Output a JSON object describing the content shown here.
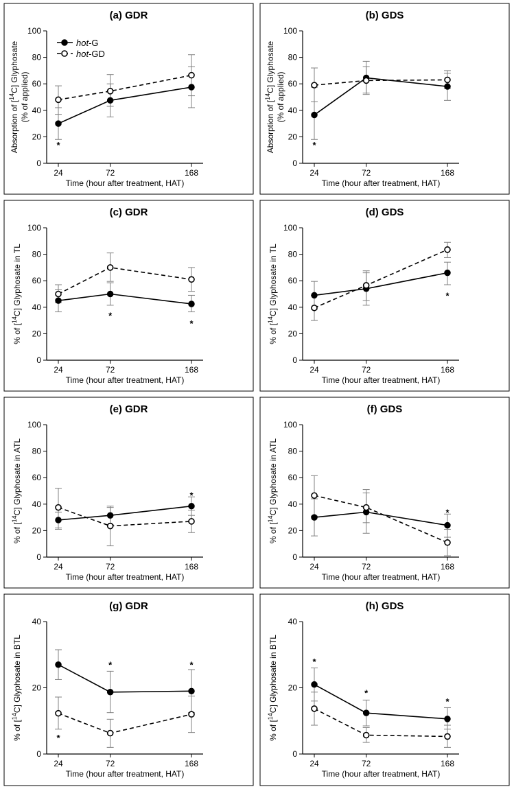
{
  "figure": {
    "xlabel": "Time (hour after treatment, HAT)",
    "legend": {
      "placement": "top-left",
      "entries": [
        {
          "italic": "hot",
          "rest": "-G",
          "style": "solid-filled"
        },
        {
          "italic": "hot",
          "rest": "-GD",
          "style": "dashed-open"
        }
      ]
    }
  },
  "chart_data": [
    {
      "id": "a",
      "title": "(a) GDR",
      "type": "line",
      "x": [
        24,
        72,
        168
      ],
      "x_ticks": [
        "24",
        "72",
        "168"
      ],
      "ylim": [
        0,
        100
      ],
      "y_ticks": [
        0,
        20,
        40,
        60,
        80,
        100
      ],
      "ylabel": {
        "lines": [
          [
            "Absorption of [",
            "14",
            "C] Glyphosate"
          ],
          [
            "(% of applied)"
          ]
        ]
      },
      "series": [
        {
          "name": "hot-G",
          "values": [
            30,
            47.5,
            57.5
          ],
          "err": [
            [
              18,
              42
            ],
            [
              35,
              60
            ],
            [
              42,
              73
            ]
          ]
        },
        {
          "name": "hot-GD",
          "values": [
            48,
            54.5,
            66.5
          ],
          "err": [
            [
              37,
              58.5
            ],
            [
              43,
              67
            ],
            [
              51,
              82
            ]
          ]
        }
      ],
      "significance": [
        {
          "x": 24,
          "y": 14,
          "text": "*"
        }
      ]
    },
    {
      "id": "b",
      "title": "(b) GDS",
      "type": "line",
      "x": [
        24,
        72,
        168
      ],
      "x_ticks": [
        "24",
        "72",
        "168"
      ],
      "ylim": [
        0,
        100
      ],
      "y_ticks": [
        0,
        20,
        40,
        60,
        80,
        100
      ],
      "ylabel": {
        "lines": [
          [
            "Absorption of [",
            "14",
            "C] Glyphosate"
          ],
          [
            "(% of applied)"
          ]
        ]
      },
      "series": [
        {
          "name": "hot-G",
          "values": [
            36.5,
            64.5,
            58
          ],
          "err": [
            [
              18,
              57.5
            ],
            [
              53,
              77
            ],
            [
              47.5,
              68
            ]
          ]
        },
        {
          "name": "hot-GD",
          "values": [
            59,
            62.5,
            63
          ],
          "err": [
            [
              46.5,
              72
            ],
            [
              52,
              73
            ],
            [
              56.5,
              70
            ]
          ]
        }
      ],
      "significance": [
        {
          "x": 24,
          "y": 14,
          "text": "*"
        }
      ]
    },
    {
      "id": "c",
      "title": "(c) GDR",
      "type": "line",
      "x": [
        24,
        72,
        168
      ],
      "x_ticks": [
        "24",
        "72",
        "168"
      ],
      "ylim": [
        0,
        100
      ],
      "y_ticks": [
        0,
        20,
        40,
        60,
        80,
        100
      ],
      "ylabel": {
        "lines": [
          [
            "% of [",
            "14",
            "C] Glyphosate in TL"
          ]
        ]
      },
      "series": [
        {
          "name": "hot-G",
          "values": [
            45,
            50,
            42.5
          ],
          "err": [
            [
              36.5,
              53.5
            ],
            [
              41.5,
              58.5
            ],
            [
              36.5,
              49
            ]
          ]
        },
        {
          "name": "hot-GD",
          "values": [
            50,
            70,
            61
          ],
          "err": [
            [
              43.5,
              57
            ],
            [
              59.5,
              81
            ],
            [
              52,
              70
            ]
          ]
        }
      ],
      "significance": [
        {
          "x": 72,
          "y": 34,
          "text": "*"
        },
        {
          "x": 168,
          "y": 28,
          "text": "*"
        }
      ]
    },
    {
      "id": "d",
      "title": "(d) GDS",
      "type": "line",
      "x": [
        24,
        72,
        168
      ],
      "x_ticks": [
        "24",
        "72",
        "168"
      ],
      "ylim": [
        0,
        100
      ],
      "y_ticks": [
        0,
        20,
        40,
        60,
        80,
        100
      ],
      "ylabel": {
        "lines": [
          [
            "% of [",
            "14",
            "C] Glyphosate in TL"
          ]
        ]
      },
      "series": [
        {
          "name": "hot-G",
          "values": [
            49,
            54,
            66
          ],
          "err": [
            [
              38.5,
              59.5
            ],
            [
              41.5,
              66
            ],
            [
              57,
              74
            ]
          ]
        },
        {
          "name": "hot-GD",
          "values": [
            39.5,
            56.5,
            83.5
          ],
          "err": [
            [
              30,
              49
            ],
            [
              45,
              67.5
            ],
            [
              77.5,
              89
            ]
          ]
        }
      ],
      "significance": [
        {
          "x": 168,
          "y": 49,
          "text": "*"
        }
      ]
    },
    {
      "id": "e",
      "title": "(e) GDR",
      "type": "line",
      "x": [
        24,
        72,
        168
      ],
      "x_ticks": [
        "24",
        "72",
        "168"
      ],
      "ylim": [
        0,
        100
      ],
      "y_ticks": [
        0,
        20,
        40,
        60,
        80,
        100
      ],
      "ylabel": {
        "lines": [
          [
            "% of [",
            "14",
            "C] Glyphosate in ATL"
          ]
        ]
      },
      "series": [
        {
          "name": "hot-G",
          "values": [
            28,
            31.5,
            38.5
          ],
          "err": [
            [
              22,
              34
            ],
            [
              24.5,
              38.5
            ],
            [
              31.5,
              45.5
            ]
          ]
        },
        {
          "name": "hot-GD",
          "values": [
            37.5,
            23.5,
            27
          ],
          "err": [
            [
              21,
              52
            ],
            [
              8.5,
              37.5
            ],
            [
              18.5,
              35.5
            ]
          ]
        }
      ],
      "significance": [
        {
          "x": 168,
          "y": 47,
          "text": "*"
        }
      ]
    },
    {
      "id": "f",
      "title": "(f) GDS",
      "type": "line",
      "x": [
        24,
        72,
        168
      ],
      "x_ticks": [
        "24",
        "72",
        "168"
      ],
      "ylim": [
        0,
        100
      ],
      "y_ticks": [
        0,
        20,
        40,
        60,
        80,
        100
      ],
      "ylabel": {
        "lines": [
          [
            "% of [",
            "14",
            "C] Glyphosate in ATL"
          ]
        ]
      },
      "series": [
        {
          "name": "hot-G",
          "values": [
            30,
            34,
            24
          ],
          "err": [
            [
              16,
              44
            ],
            [
              18,
              51
            ],
            [
              15,
              32.5
            ]
          ]
        },
        {
          "name": "hot-GD",
          "values": [
            46.5,
            37.5,
            11
          ],
          "err": [
            [
              31,
              61.5
            ],
            [
              26,
              48.5
            ],
            [
              1,
              21
            ]
          ]
        }
      ],
      "significance": [
        {
          "x": 168,
          "y": 34,
          "text": "*"
        }
      ]
    },
    {
      "id": "g",
      "title": "(g) GDR",
      "type": "line",
      "x": [
        24,
        72,
        168
      ],
      "x_ticks": [
        "24",
        "72",
        "168"
      ],
      "ylim": [
        0,
        40
      ],
      "y_ticks": [
        0,
        20,
        40
      ],
      "ylabel": {
        "lines": [
          [
            "% of [",
            "14",
            "C] Glyphosate in BTL"
          ]
        ]
      },
      "series": [
        {
          "name": "hot-G",
          "values": [
            27,
            18.7,
            19
          ],
          "err": [
            [
              22.5,
              31.5
            ],
            [
              12.5,
              25
            ],
            [
              12.5,
              25.5
            ]
          ]
        },
        {
          "name": "hot-GD",
          "values": [
            12.3,
            6.3,
            12
          ],
          "err": [
            [
              7.5,
              17.2
            ],
            [
              2,
              10.5
            ],
            [
              6.5,
              17.5
            ]
          ]
        }
      ],
      "significance": [
        {
          "x": 24,
          "y": 5,
          "text": "*"
        },
        {
          "x": 72,
          "y": 27,
          "text": "*"
        },
        {
          "x": 168,
          "y": 27,
          "text": "*"
        }
      ]
    },
    {
      "id": "h",
      "title": "(h) GDS",
      "type": "line",
      "x": [
        24,
        72,
        168
      ],
      "x_ticks": [
        "24",
        "72",
        "168"
      ],
      "ylim": [
        0,
        40
      ],
      "y_ticks": [
        0,
        20,
        40
      ],
      "ylabel": {
        "lines": [
          [
            "% of [",
            "14",
            "C] Glyphosate in BTL"
          ]
        ]
      },
      "series": [
        {
          "name": "hot-G",
          "values": [
            21,
            12.4,
            10.6
          ],
          "err": [
            [
              16,
              26
            ],
            [
              8.5,
              16.3
            ],
            [
              7.5,
              14
            ]
          ]
        },
        {
          "name": "hot-GD",
          "values": [
            13.7,
            5.7,
            5.3
          ],
          "err": [
            [
              8.7,
              18.7
            ],
            [
              3.5,
              8
            ],
            [
              2,
              8.7
            ]
          ]
        }
      ],
      "significance": [
        {
          "x": 24,
          "y": 28,
          "text": "*"
        },
        {
          "x": 72,
          "y": 18.5,
          "text": "*"
        },
        {
          "x": 168,
          "y": 16,
          "text": "*"
        }
      ]
    }
  ]
}
